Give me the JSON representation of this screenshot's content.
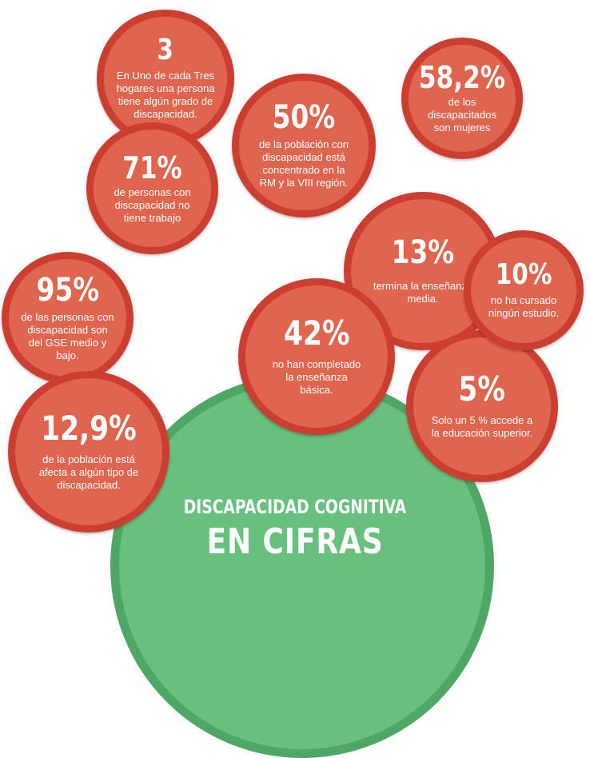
{
  "title": {
    "line1": "DISCAPACIDAD COGNITIVA",
    "line2": "EN CIFRAS"
  },
  "colors": {
    "bubble_fill": "#e0654f",
    "bubble_border": "#cc3f30",
    "green_fill": "#67c07d",
    "green_border": "#4fa765"
  },
  "stats": [
    {
      "value": "3",
      "text": "En Uno de cada Tres hogares una persona tiene algún grado de discapacidad."
    },
    {
      "value": "50%",
      "text": "de la población con discapacidad está concentrado en la RM y la VIII región."
    },
    {
      "value": "58,2%",
      "text": "de los discapacitados son mujeres"
    },
    {
      "value": "71%",
      "text": "de personas con discapacidad no tiene trabajo"
    },
    {
      "value": "13%",
      "text": "termina la enseñanza media."
    },
    {
      "value": "10%",
      "text": "no ha cursado ningún estudio."
    },
    {
      "value": "95%",
      "text": "de las personas con discapacidad son del GSE medio y bajo."
    },
    {
      "value": "42%",
      "text": "no han completado la enseñanza básica."
    },
    {
      "value": "5%",
      "text": "Solo un 5 % accede a la educación superior."
    },
    {
      "value": "12,9%",
      "text": "de la población está afecta a algún tipo de discapacidad."
    }
  ]
}
